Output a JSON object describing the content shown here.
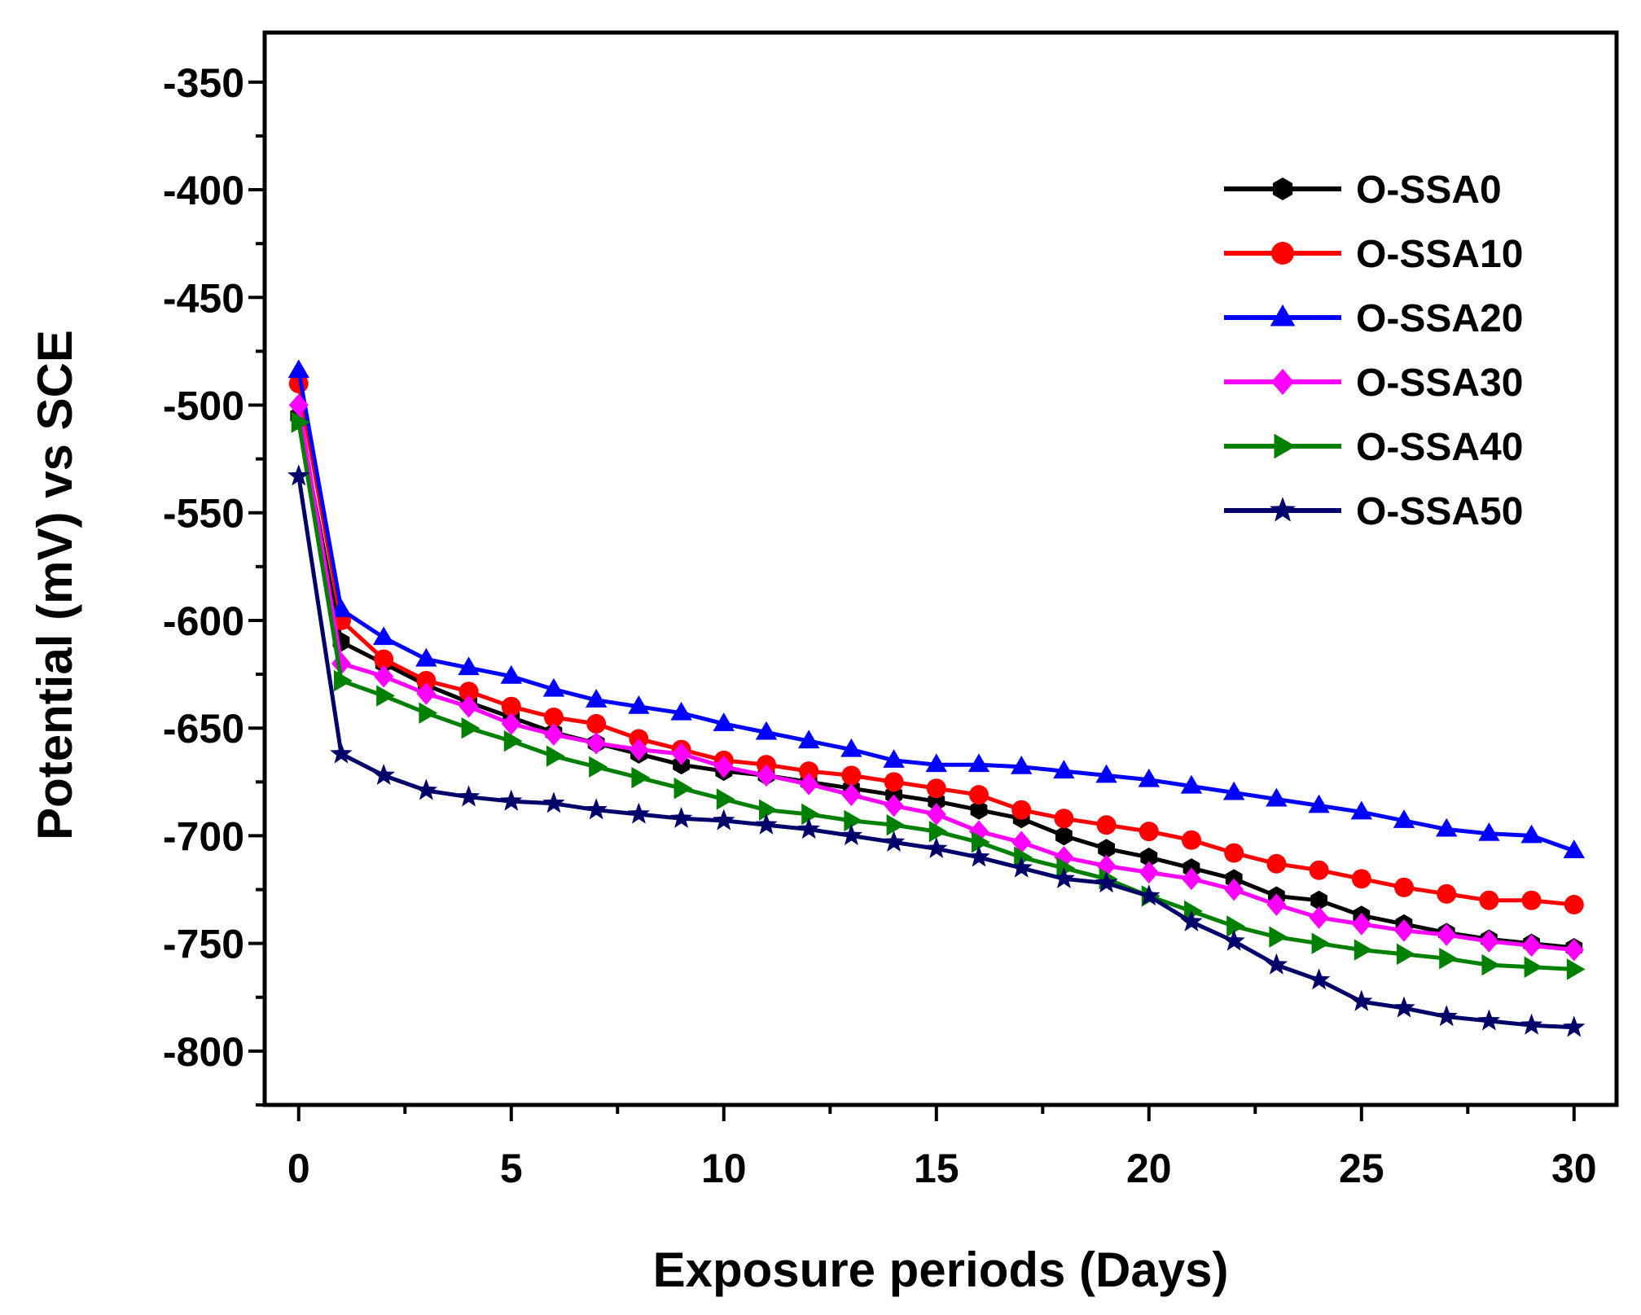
{
  "chart_data": {
    "type": "line",
    "title": "",
    "xlabel": "Exposure periods (Days)",
    "ylabel": "Potential (mV) vs SCE",
    "xlim": [
      -0.8,
      31
    ],
    "ylim": [
      -825,
      -327
    ],
    "xticks": [
      0,
      5,
      10,
      15,
      20,
      25,
      30
    ],
    "yticks": [
      -350,
      -400,
      -450,
      -500,
      -550,
      -600,
      -650,
      -700,
      -750,
      -800
    ],
    "x": [
      0,
      1,
      2,
      3,
      4,
      5,
      6,
      7,
      8,
      9,
      10,
      11,
      12,
      13,
      14,
      15,
      16,
      17,
      18,
      19,
      20,
      21,
      22,
      23,
      24,
      25,
      26,
      27,
      28,
      29,
      30
    ],
    "legend_position": "top-right",
    "series": [
      {
        "name": "O-SSA0",
        "color": "#000000",
        "marker": "hexagon",
        "values": [
          -505,
          -610,
          -620,
          -630,
          -638,
          -645,
          -652,
          -657,
          -662,
          -667,
          -670,
          -672,
          -675,
          -678,
          -681,
          -684,
          -688,
          -692,
          -700,
          -706,
          -710,
          -715,
          -720,
          -728,
          -730,
          -737,
          -741,
          -745,
          -748,
          -750,
          -752
        ]
      },
      {
        "name": "O-SSA10",
        "color": "#ff0000",
        "marker": "circle",
        "values": [
          -490,
          -600,
          -618,
          -628,
          -633,
          -640,
          -645,
          -648,
          -655,
          -660,
          -665,
          -667,
          -670,
          -672,
          -675,
          -678,
          -681,
          -688,
          -692,
          -695,
          -698,
          -702,
          -708,
          -713,
          -716,
          -720,
          -724,
          -727,
          -730,
          -730,
          -732
        ]
      },
      {
        "name": "O-SSA20",
        "color": "#0000ff",
        "marker": "triangle-up",
        "values": [
          -484,
          -595,
          -608,
          -618,
          -622,
          -626,
          -632,
          -637,
          -640,
          -643,
          -648,
          -652,
          -656,
          -660,
          -665,
          -667,
          -667,
          -668,
          -670,
          -672,
          -674,
          -677,
          -680,
          -683,
          -686,
          -689,
          -693,
          -697,
          -699,
          -700,
          -707
        ]
      },
      {
        "name": "O-SSA30",
        "color": "#ff00ff",
        "marker": "diamond",
        "values": [
          -500,
          -620,
          -626,
          -634,
          -640,
          -648,
          -653,
          -657,
          -660,
          -662,
          -668,
          -672,
          -676,
          -681,
          -686,
          -690,
          -698,
          -703,
          -710,
          -714,
          -717,
          -720,
          -725,
          -732,
          -738,
          -741,
          -744,
          -746,
          -749,
          -751,
          -753
        ]
      },
      {
        "name": "O-SSA40",
        "color": "#008000",
        "marker": "triangle-right",
        "values": [
          -508,
          -628,
          -635,
          -643,
          -650,
          -656,
          -663,
          -668,
          -673,
          -678,
          -683,
          -688,
          -690,
          -693,
          -695,
          -698,
          -703,
          -710,
          -715,
          -720,
          -728,
          -735,
          -742,
          -747,
          -750,
          -753,
          -755,
          -757,
          -760,
          -761,
          -762
        ]
      },
      {
        "name": "O-SSA50",
        "color": "#00006b",
        "marker": "star",
        "values": [
          -533,
          -662,
          -672,
          -679,
          -682,
          -684,
          -685,
          -688,
          -690,
          -692,
          -693,
          -695,
          -697,
          -700,
          -703,
          -706,
          -710,
          -715,
          -720,
          -722,
          -728,
          -740,
          -749,
          -760,
          -767,
          -777,
          -780,
          -784,
          -786,
          -788,
          -789
        ]
      }
    ]
  }
}
